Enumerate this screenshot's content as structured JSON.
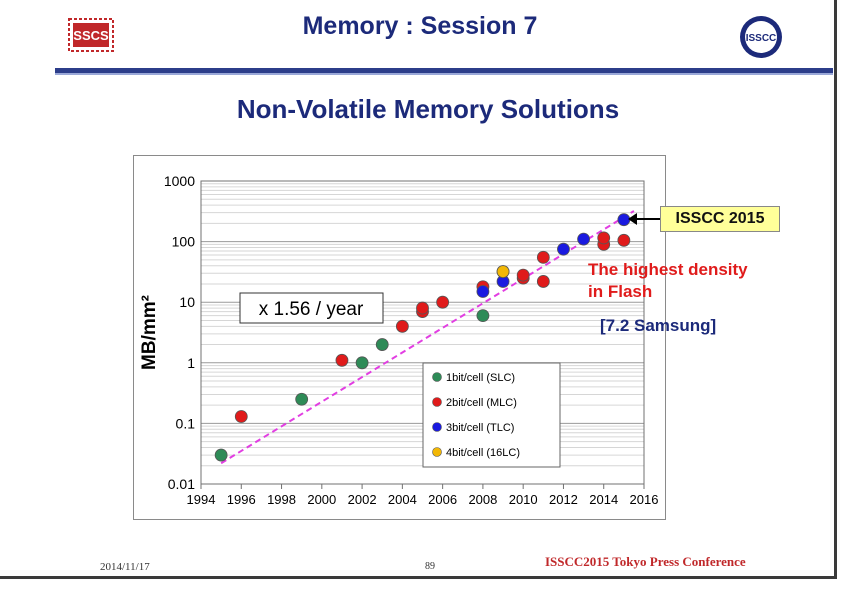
{
  "header": {
    "title": "Memory : Session 7",
    "left_logo_text": "SSCS",
    "right_logo_text": "ISSCC"
  },
  "subtitle": "Non-Volatile Memory Solutions",
  "chart_data": {
    "type": "scatter",
    "yscale": "log",
    "xlim": [
      1994,
      2016
    ],
    "ylim": [
      0.01,
      1000
    ],
    "xticks": [
      "1994",
      "1996",
      "1998",
      "2000",
      "2002",
      "2004",
      "2006",
      "2008",
      "2010",
      "2012",
      "2014",
      "2016"
    ],
    "yticks": [
      "0.01",
      "0.1",
      "1",
      "10",
      "100",
      "1000"
    ],
    "ylabel": "MB/mm²",
    "xlabel": "",
    "trend_label": "x 1.56 / year",
    "trendline": {
      "x": [
        1995,
        2015.5
      ],
      "y": [
        0.022,
        320
      ]
    },
    "legend": [
      {
        "label": "1bit/cell (SLC)",
        "color": "#2e8b57"
      },
      {
        "label": "2bit/cell (MLC)",
        "color": "#e01b1b"
      },
      {
        "label": "3bit/cell (TLC)",
        "color": "#1a1ae0"
      },
      {
        "label": "4bit/cell (16LC)",
        "color": "#f2b705"
      }
    ],
    "series": [
      {
        "name": "1bit/cell (SLC)",
        "color": "#2e8b57",
        "points": [
          [
            1995,
            0.03
          ],
          [
            1999,
            0.25
          ],
          [
            2002,
            1.0
          ],
          [
            2003,
            2.0
          ],
          [
            2008,
            6.0
          ]
        ]
      },
      {
        "name": "2bit/cell (MLC)",
        "color": "#e01b1b",
        "points": [
          [
            1996,
            0.13
          ],
          [
            2001,
            1.1
          ],
          [
            2004,
            4.0
          ],
          [
            2005,
            7.0
          ],
          [
            2005,
            8.0
          ],
          [
            2006,
            10
          ],
          [
            2008,
            18
          ],
          [
            2010,
            25
          ],
          [
            2010,
            28
          ],
          [
            2011,
            22
          ],
          [
            2011,
            55
          ],
          [
            2014,
            90
          ],
          [
            2014,
            115
          ],
          [
            2015,
            105
          ]
        ]
      },
      {
        "name": "3bit/cell (TLC)",
        "color": "#1a1ae0",
        "points": [
          [
            2008,
            15
          ],
          [
            2009,
            22
          ],
          [
            2009,
            32
          ],
          [
            2012,
            75
          ],
          [
            2013,
            110
          ],
          [
            2015,
            230
          ]
        ]
      },
      {
        "name": "4bit/cell (16LC)",
        "color": "#f2b705",
        "points": [
          [
            2009,
            32
          ]
        ]
      }
    ]
  },
  "callouts": {
    "isscc": "ISSCC 2015",
    "density_line1": "The highest density",
    "density_line2": "in Flash",
    "samsung": "[7.2 Samsung]"
  },
  "footer": {
    "date": "2014/11/17",
    "page": "89",
    "conference": "ISSCC2015 Tokyo Press Conference"
  }
}
